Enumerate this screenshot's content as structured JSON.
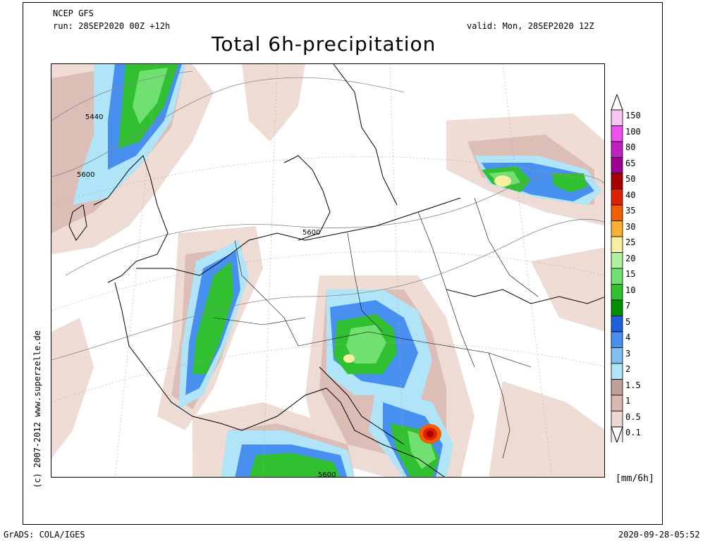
{
  "header": {
    "model": "NCEP GFS",
    "run": "run: 28SEP2020 00Z +12h",
    "valid": "valid: Mon, 28SEP2020 12Z",
    "title": "Total 6h-precipitation"
  },
  "legend": {
    "units": "[mm/6h]",
    "items": [
      {
        "label": "150",
        "color": "#f8c4f2"
      },
      {
        "label": "100",
        "color": "#f050f0"
      },
      {
        "label": "80",
        "color": "#c020c0"
      },
      {
        "label": "65",
        "color": "#a00090"
      },
      {
        "label": "50",
        "color": "#a80000"
      },
      {
        "label": "40",
        "color": "#e02000"
      },
      {
        "label": "35",
        "color": "#f06000"
      },
      {
        "label": "30",
        "color": "#f8b030"
      },
      {
        "label": "25",
        "color": "#f8f0a0"
      },
      {
        "label": "20",
        "color": "#b0f0a0"
      },
      {
        "label": "15",
        "color": "#70e070"
      },
      {
        "label": "10",
        "color": "#30c030"
      },
      {
        "label": "7",
        "color": "#009000"
      },
      {
        "label": "5",
        "color": "#2060e0"
      },
      {
        "label": "4",
        "color": "#4890f0"
      },
      {
        "label": "3",
        "color": "#80c0f0"
      },
      {
        "label": "2",
        "color": "#b0e4f8"
      },
      {
        "label": "1.5",
        "color": "#c0a098"
      },
      {
        "label": "1",
        "color": "#d8b8b0"
      },
      {
        "label": "0.5",
        "color": "#ecd8d0"
      },
      {
        "label": "0.1",
        "color": "#f8ece6"
      }
    ]
  },
  "contours": [
    "5440",
    "5600",
    "5600",
    "5600"
  ],
  "copyright": "(c) 2007-2012 www.superzelle.de",
  "footer": {
    "left": "GrADS: COLA/IGES",
    "right": "2020-09-28-05:52"
  }
}
